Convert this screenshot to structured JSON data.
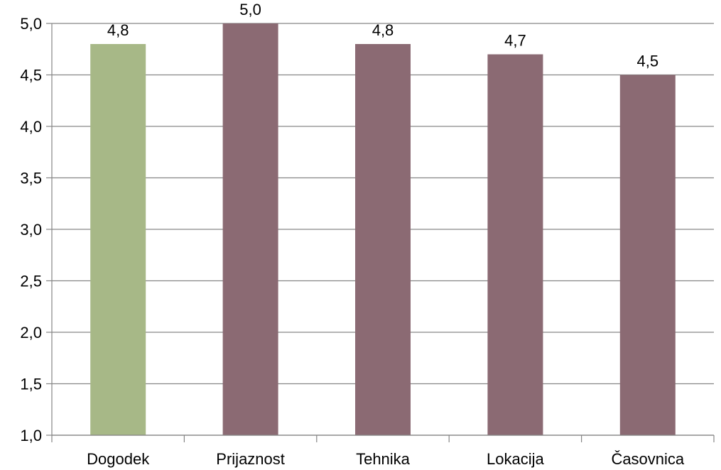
{
  "chart_data": {
    "type": "bar",
    "categories": [
      "Dogodek",
      "Prijaznost",
      "Tehnika",
      "Lokacija",
      "Časovnica"
    ],
    "values": [
      4.8,
      5.0,
      4.8,
      4.7,
      4.5
    ],
    "data_labels": [
      "4,8",
      "5,0",
      "4,8",
      "4,7",
      "4,5"
    ],
    "title": "",
    "xlabel": "",
    "ylabel": "",
    "ylim": [
      1.0,
      5.0
    ],
    "yticks": [
      1.0,
      1.5,
      2.0,
      2.5,
      3.0,
      3.5,
      4.0,
      4.5,
      5.0
    ],
    "ytick_labels": [
      "1,0",
      "1,5",
      "2,0",
      "2,5",
      "3,0",
      "3,5",
      "4,0",
      "4,5",
      "5,0"
    ],
    "grid": true,
    "legend": "none",
    "colors": {
      "highlight": "#a7b887",
      "bar": "#8b6a73",
      "grid": "#868686",
      "axis": "#868686"
    },
    "highlight_index": 0
  }
}
